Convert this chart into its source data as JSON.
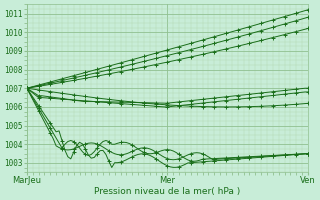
{
  "xlabel": "Pression niveau de la mer( hPa )",
  "background_color": "#c8edd8",
  "grid_major_color": "#90c090",
  "grid_minor_color": "#b0d8b0",
  "line_color": "#1a6e1a",
  "xlim": [
    0,
    96
  ],
  "ylim": [
    1002.5,
    1011.5
  ],
  "yticks": [
    1003,
    1004,
    1005,
    1006,
    1007,
    1008,
    1009,
    1010,
    1011
  ],
  "xtick_positions": [
    0,
    48,
    96
  ],
  "xtick_labels": [
    "MarJeu",
    "Mer",
    "Ven"
  ]
}
